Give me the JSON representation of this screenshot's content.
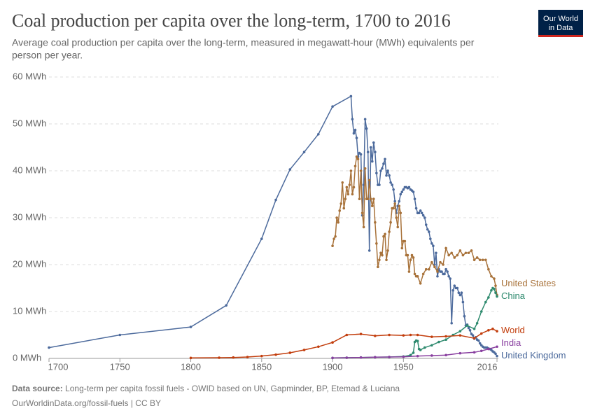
{
  "chart_data": {
    "type": "line",
    "title": "Coal production per capita over the long-term, 1700 to 2016",
    "subtitle": [
      "Average coal production per capita over the long-term, measured in megawatt-hour (MWh) equivalents per",
      "person per year."
    ],
    "logo": [
      "Our World",
      "in Data"
    ],
    "source_label": "Data source:",
    "source": "Long-term per capita fossil fuels - OWID based on UN, Gapminder, BP, Etemad & Luciana",
    "url_line": "OurWorldinData.org/fossil-fuels | CC BY",
    "xlim": [
      1700,
      2016
    ],
    "xticks": [
      1700,
      1750,
      1800,
      1850,
      1900,
      1950,
      2016
    ],
    "ylim": [
      0,
      60
    ],
    "yticks": [
      {
        "value": 0,
        "label": "0 MWh"
      },
      {
        "value": 10,
        "label": "10 MWh"
      },
      {
        "value": 20,
        "label": "20 MWh"
      },
      {
        "value": 30,
        "label": "30 MWh"
      },
      {
        "value": 40,
        "label": "40 MWh"
      },
      {
        "value": 50,
        "label": "50 MWh"
      },
      {
        "value": 60,
        "label": "60 MWh"
      }
    ],
    "grid": true,
    "series": [
      {
        "name": "United Kingdom",
        "color": "#4c6a9c",
        "x": [
          1700,
          1750,
          1800,
          1825,
          1850,
          1860,
          1870,
          1880,
          1890,
          1900,
          1913,
          1914,
          1915,
          1916,
          1917,
          1918,
          1919,
          1920,
          1921,
          1922,
          1923,
          1924,
          1925,
          1926,
          1927,
          1928,
          1929,
          1930,
          1931,
          1932,
          1933,
          1934,
          1935,
          1936,
          1937,
          1938,
          1939,
          1940,
          1941,
          1942,
          1943,
          1944,
          1945,
          1946,
          1947,
          1948,
          1949,
          1950,
          1951,
          1952,
          1953,
          1954,
          1955,
          1956,
          1957,
          1958,
          1959,
          1960,
          1961,
          1962,
          1963,
          1964,
          1965,
          1966,
          1967,
          1968,
          1969,
          1970,
          1971,
          1972,
          1973,
          1974,
          1975,
          1976,
          1977,
          1978,
          1979,
          1980,
          1981,
          1982,
          1983,
          1984,
          1985,
          1986,
          1987,
          1988,
          1989,
          1990,
          1991,
          1992,
          1993,
          1994,
          1995,
          1996,
          1997,
          1998,
          1999,
          2000,
          2001,
          2002,
          2003,
          2004,
          2005,
          2006,
          2007,
          2008,
          2009,
          2010,
          2011,
          2012,
          2013,
          2014,
          2015,
          2016
        ],
        "values": [
          2.3,
          5,
          6.7,
          11.3,
          25.5,
          33.8,
          40.3,
          44,
          47.8,
          53.7,
          55.9,
          51,
          48,
          48.7,
          47,
          43,
          43.8,
          43.5,
          30.5,
          37,
          51,
          49,
          44,
          23,
          45,
          42,
          46,
          44,
          39.5,
          37,
          37,
          40,
          40.5,
          41.5,
          42.5,
          39,
          40,
          39,
          37.5,
          37,
          36,
          33.5,
          31,
          32.5,
          33.5,
          35,
          35.5,
          36,
          36.5,
          36.5,
          36.3,
          36.5,
          36,
          35.8,
          35.5,
          34,
          32,
          31,
          31,
          31.5,
          31,
          30.5,
          30,
          28.5,
          27.5,
          27,
          25.5,
          24.5,
          24,
          20,
          22.5,
          17.5,
          19,
          18.5,
          18.5,
          18,
          18,
          19,
          18.5,
          17.5,
          17,
          7.5,
          14.5,
          15.5,
          15,
          15,
          14,
          13.5,
          14,
          12,
          9,
          7,
          7.2,
          6.5,
          6,
          5.2,
          4.9,
          4.2,
          4.5,
          4,
          3.8,
          3.2,
          2.8,
          2.5,
          2.3,
          2.3,
          2.3,
          2.1,
          2,
          1.8,
          1.5,
          1.3,
          1,
          0.5
        ]
      },
      {
        "name": "United States",
        "color": "#a8723a",
        "x": [
          1900,
          1901,
          1902,
          1903,
          1904,
          1905,
          1906,
          1907,
          1908,
          1909,
          1910,
          1911,
          1912,
          1913,
          1914,
          1915,
          1916,
          1917,
          1918,
          1919,
          1920,
          1921,
          1922,
          1923,
          1924,
          1925,
          1926,
          1927,
          1928,
          1929,
          1930,
          1931,
          1932,
          1933,
          1934,
          1935,
          1936,
          1937,
          1938,
          1939,
          1940,
          1941,
          1942,
          1943,
          1944,
          1945,
          1946,
          1947,
          1948,
          1949,
          1950,
          1951,
          1952,
          1953,
          1954,
          1955,
          1956,
          1957,
          1958,
          1959,
          1960,
          1962,
          1964,
          1966,
          1968,
          1970,
          1972,
          1974,
          1976,
          1978,
          1980,
          1982,
          1984,
          1986,
          1988,
          1990,
          1992,
          1994,
          1996,
          1998,
          2000,
          2002,
          2004,
          2006,
          2008,
          2010,
          2012,
          2014,
          2015,
          2016
        ],
        "values": [
          24,
          25.5,
          26,
          30,
          29,
          31.5,
          33,
          37.5,
          32,
          34,
          36.5,
          35,
          37,
          40,
          35,
          36.5,
          41,
          43,
          42.5,
          34,
          40,
          31,
          28,
          40.5,
          34,
          34,
          38,
          34,
          32.5,
          34,
          29,
          24.5,
          19.5,
          21,
          22.5,
          22,
          26,
          26.5,
          21,
          23,
          27,
          29,
          32,
          32,
          33,
          30,
          28,
          32.5,
          31,
          23.5,
          25,
          25,
          22,
          22,
          18.5,
          21,
          22,
          21.5,
          18,
          17.5,
          17.5,
          16,
          18,
          19,
          19,
          20.5,
          19.5,
          18.5,
          20.5,
          20,
          23.5,
          22,
          22.5,
          21.5,
          22,
          23,
          22,
          22.5,
          22.5,
          23,
          21,
          21.5,
          21,
          21,
          21,
          19,
          17.5,
          17,
          15.5,
          13.5
        ]
      },
      {
        "name": "China",
        "color": "#2e8a6e",
        "x": [
          1900,
          1910,
          1920,
          1930,
          1940,
          1950,
          1955,
          1957,
          1958,
          1959,
          1960,
          1961,
          1962,
          1965,
          1970,
          1975,
          1980,
          1985,
          1990,
          1995,
          2000,
          2002,
          2005,
          2008,
          2010,
          2012,
          2013,
          2014,
          2015,
          2016
        ],
        "values": [
          0.1,
          0.15,
          0.2,
          0.25,
          0.3,
          0.4,
          0.7,
          1.2,
          3.5,
          3.8,
          3.7,
          2,
          1.8,
          2.3,
          2.8,
          3.5,
          4,
          5,
          5.8,
          7,
          6.3,
          7.5,
          10,
          12,
          13,
          14.5,
          15,
          14.8,
          14,
          13.2
        ]
      },
      {
        "name": "World",
        "color": "#c23d0c",
        "x": [
          1800,
          1820,
          1830,
          1840,
          1850,
          1860,
          1870,
          1880,
          1890,
          1900,
          1910,
          1920,
          1930,
          1940,
          1950,
          1955,
          1960,
          1970,
          1980,
          1990,
          2000,
          2005,
          2010,
          2013,
          2016
        ],
        "values": [
          0.1,
          0.15,
          0.2,
          0.3,
          0.5,
          0.8,
          1.2,
          1.8,
          2.5,
          3.4,
          5,
          5.2,
          4.8,
          5,
          4.9,
          5,
          5,
          4.6,
          4.7,
          4.9,
          4.3,
          5.3,
          6,
          6.3,
          5.8
        ]
      },
      {
        "name": "India",
        "color": "#883e9f",
        "x": [
          1900,
          1910,
          1920,
          1930,
          1940,
          1950,
          1960,
          1970,
          1980,
          1990,
          2000,
          2005,
          2010,
          2016
        ],
        "values": [
          0.1,
          0.15,
          0.2,
          0.25,
          0.3,
          0.35,
          0.5,
          0.6,
          0.7,
          1.1,
          1.3,
          1.6,
          2,
          2.5
        ]
      }
    ]
  }
}
